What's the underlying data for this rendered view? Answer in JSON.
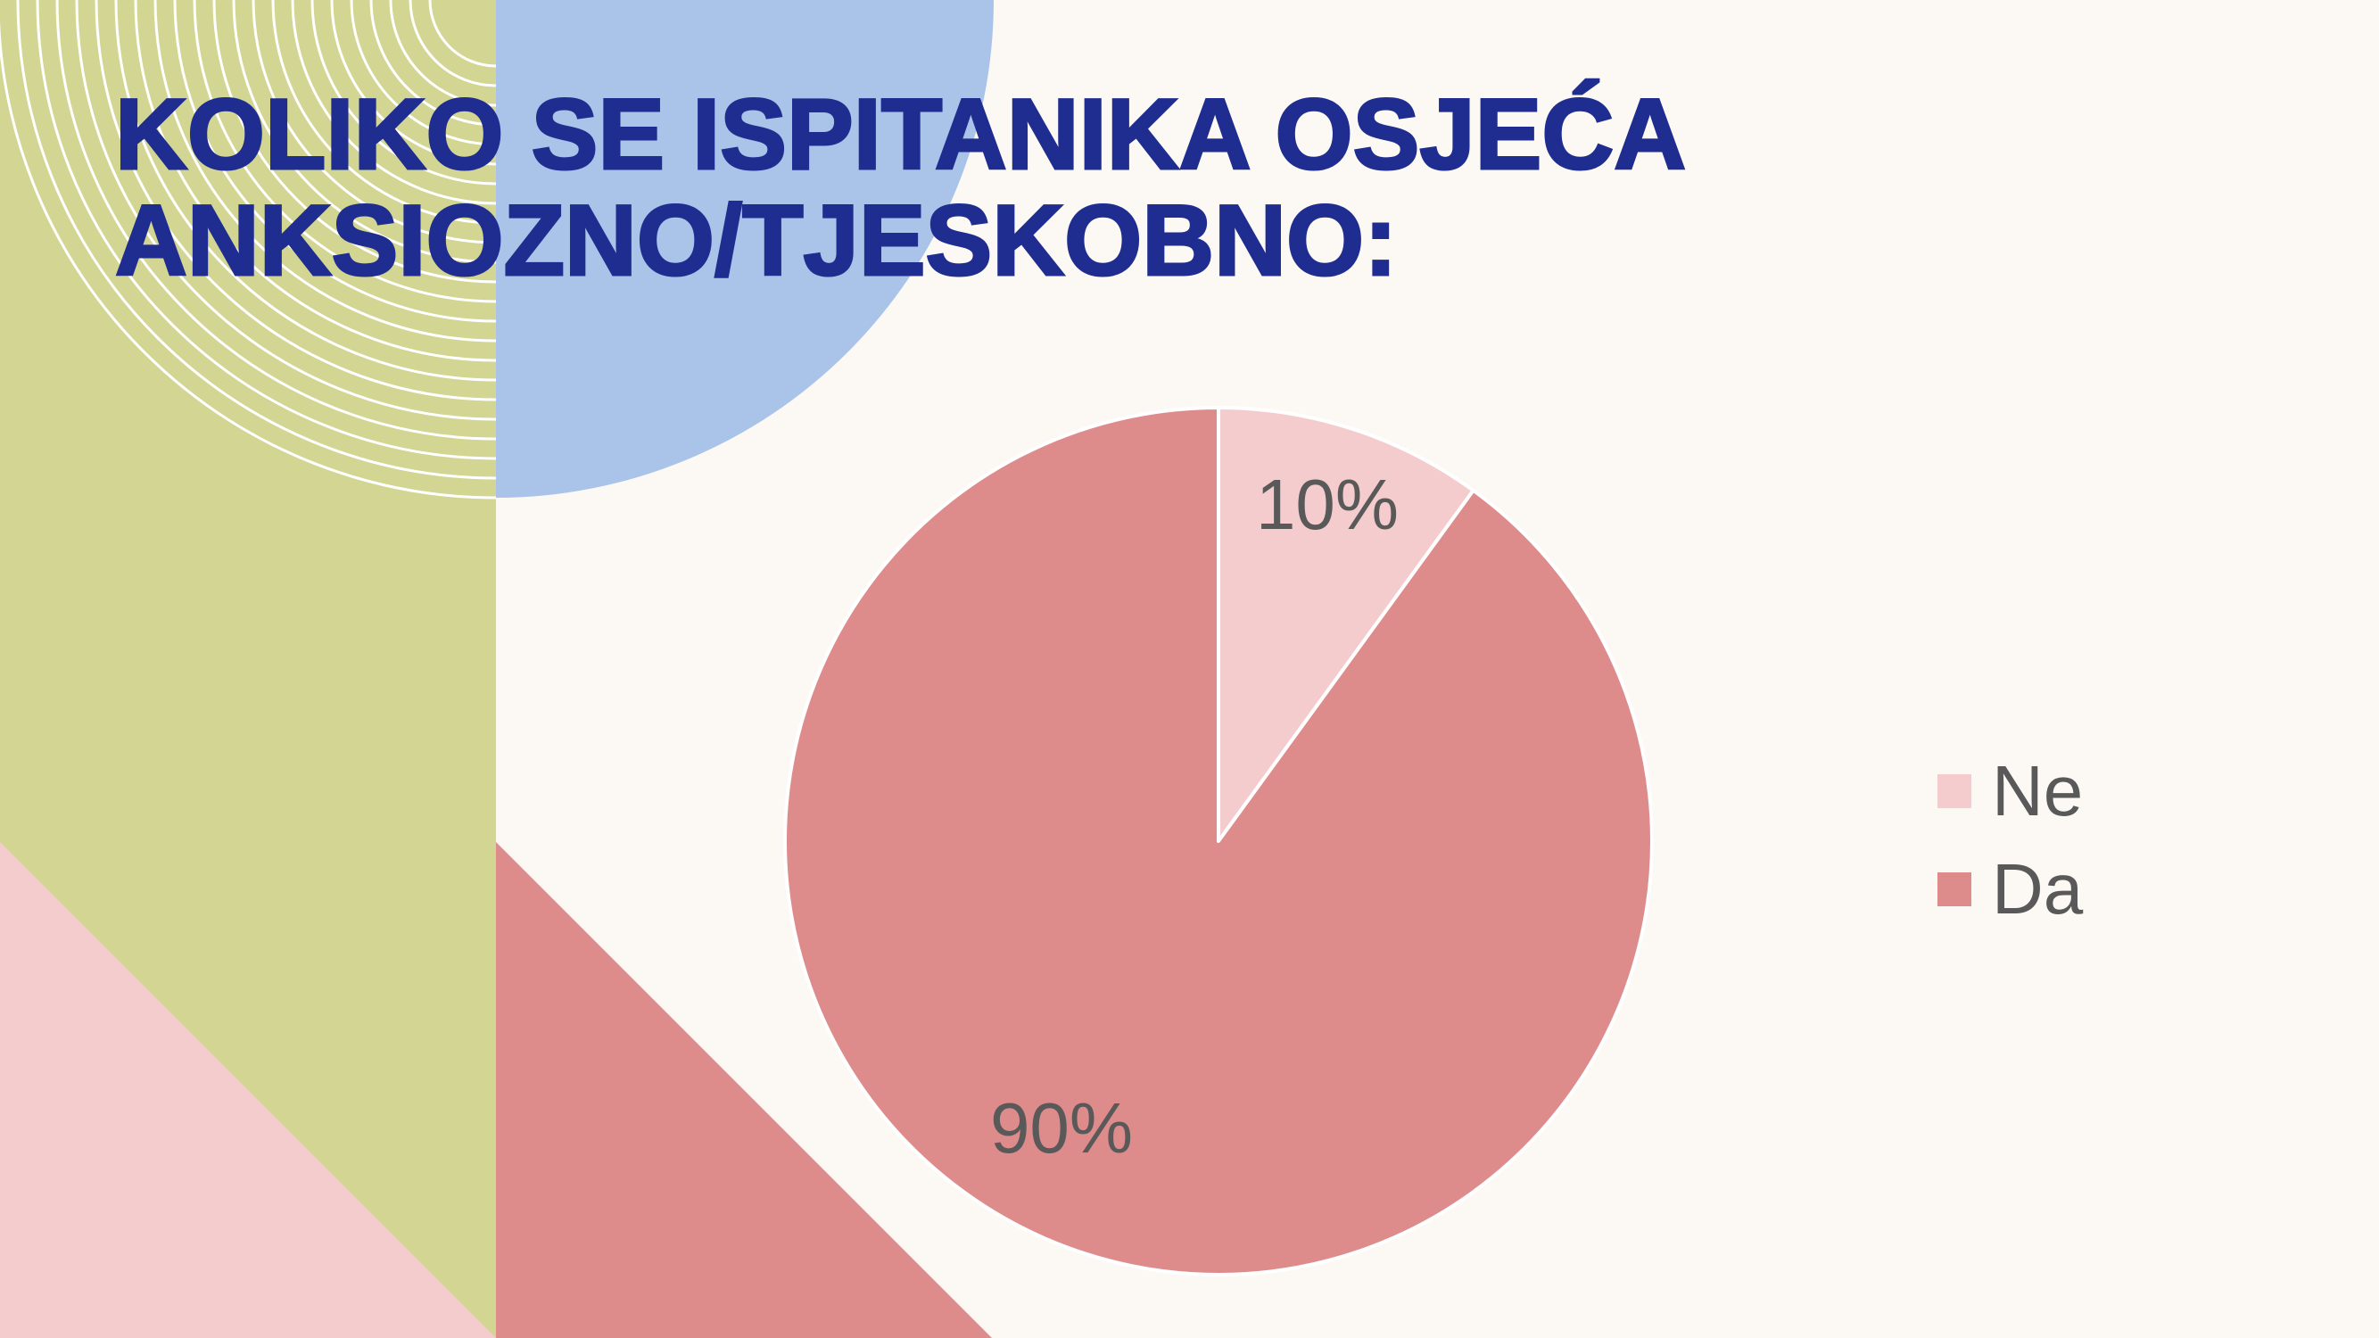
{
  "colors": {
    "background": "#FCF9F5",
    "green_panel": "#D3D593",
    "blue_circle": "#A9C4E8",
    "pink_triangle": "#F4CCCE",
    "salmon_triangle": "#DE8B8B",
    "rings": "#FFFFFF",
    "title": "#1E2D8F",
    "label_text": "#595959"
  },
  "chart_data": {
    "type": "pie",
    "title": "KOLIKO SE ISPITANIKA OSJEĆA ANKSIOZNO/TJESKOBNO:",
    "categories": [
      "Ne",
      "Da"
    ],
    "values": [
      10,
      90
    ],
    "data_labels": [
      "10%",
      "90%"
    ],
    "colors": [
      "#F4CCCE",
      "#DE8B8B"
    ],
    "legend_position": "right"
  }
}
